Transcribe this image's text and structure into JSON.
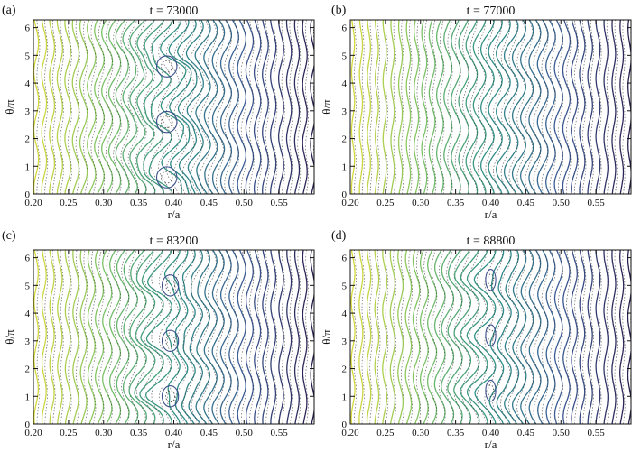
{
  "figure": {
    "panels": [
      {
        "label": "(a)",
        "title": "t = 73000"
      },
      {
        "label": "(b)",
        "title": "t = 77000"
      },
      {
        "label": "(c)",
        "title": "t = 83200"
      },
      {
        "label": "(d)",
        "title": "t = 88800"
      }
    ]
  },
  "chart_data": [
    {
      "type": "contour",
      "panel": "(a)",
      "title": "t = 73000",
      "xlabel": "r/a",
      "ylabel": "θ/π",
      "xlim": [
        0.2,
        0.6
      ],
      "ylim": [
        0,
        6.28
      ],
      "xticks": [
        "0.20",
        "0.25",
        "0.30",
        "0.35",
        "0.40",
        "0.45",
        "0.50",
        "0.55"
      ],
      "yticks": [
        "0",
        "1",
        "2",
        "3",
        "4",
        "5",
        "6"
      ],
      "colormap": [
        "#d9d93a",
        "#7fc466",
        "#2e8f86",
        "#3b5a93",
        "#2a1e4d"
      ],
      "island_r": 0.39,
      "island_theta": [
        0.6,
        2.6,
        4.6
      ],
      "island_width": 0.032,
      "wave_amplitude": 0.009
    },
    {
      "type": "contour",
      "panel": "(b)",
      "title": "t = 77000",
      "xlabel": "r/a",
      "ylabel": "θ/π",
      "xlim": [
        0.2,
        0.6
      ],
      "ylim": [
        0,
        6.28
      ],
      "xticks": [
        "0.20",
        "0.25",
        "0.30",
        "0.35",
        "0.40",
        "0.45",
        "0.50",
        "0.55"
      ],
      "yticks": [
        "0",
        "1",
        "2",
        "3",
        "4",
        "5",
        "6"
      ],
      "colormap": [
        "#d9d93a",
        "#7fc466",
        "#2e8f86",
        "#3b5a93",
        "#2a1e4d"
      ],
      "island_r": 0.42,
      "island_theta": [],
      "island_width": 0.0,
      "wave_amplitude": 0.006
    },
    {
      "type": "contour",
      "panel": "(c)",
      "title": "t = 83200",
      "xlabel": "r/a",
      "ylabel": "θ/π",
      "xlim": [
        0.2,
        0.6
      ],
      "ylim": [
        0,
        6.28
      ],
      "xticks": [
        "0.20",
        "0.25",
        "0.30",
        "0.35",
        "0.40",
        "0.45",
        "0.50",
        "0.55"
      ],
      "yticks": [
        "0",
        "1",
        "2",
        "3",
        "4",
        "5",
        "6"
      ],
      "colormap": [
        "#d9d93a",
        "#7fc466",
        "#2e8f86",
        "#3b5a93",
        "#2a1e4d"
      ],
      "island_r": 0.395,
      "island_theta": [
        1.0,
        3.0,
        5.0
      ],
      "island_width": 0.026,
      "wave_amplitude": 0.008
    },
    {
      "type": "contour",
      "panel": "(d)",
      "title": "t = 88800",
      "xlabel": "r/a",
      "ylabel": "θ/π",
      "xlim": [
        0.2,
        0.6
      ],
      "ylim": [
        0,
        6.28
      ],
      "xticks": [
        "0.20",
        "0.25",
        "0.30",
        "0.35",
        "0.40",
        "0.45",
        "0.50",
        "0.55"
      ],
      "yticks": [
        "0",
        "1",
        "2",
        "3",
        "4",
        "5",
        "6"
      ],
      "colormap": [
        "#d9d93a",
        "#7fc466",
        "#2e8f86",
        "#3b5a93",
        "#2a1e4d"
      ],
      "island_r": 0.4,
      "island_theta": [
        1.2,
        3.2,
        5.2
      ],
      "island_width": 0.016,
      "wave_amplitude": 0.007
    }
  ]
}
